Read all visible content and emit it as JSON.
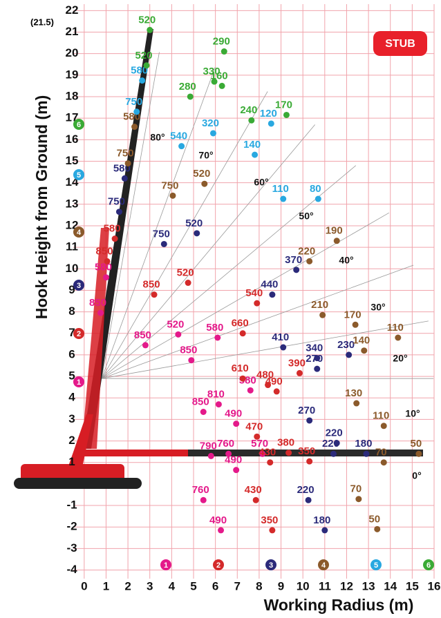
{
  "chart_data": {
    "type": "scatter",
    "boom_note": "(21.5)",
    "badge": "STUB",
    "x_label": "Working Radius (m)",
    "y_label": "Hook Height from Ground (m)",
    "xlim": [
      -0.5,
      16
    ],
    "ylim": [
      -4.4,
      22.3
    ],
    "xticks": [
      0,
      1,
      2,
      3,
      4,
      5,
      6,
      7,
      8,
      9,
      10,
      11,
      12,
      13,
      14,
      15,
      16
    ],
    "yticks": [
      -4,
      -3,
      -2,
      -1,
      1,
      2,
      3,
      4,
      5,
      6,
      7,
      8,
      9,
      10,
      11,
      12,
      13,
      14,
      15,
      16,
      17,
      18,
      19,
      20,
      21,
      22
    ],
    "grid": true,
    "angle_labels": [
      "80°",
      "70°",
      "60°",
      "50°",
      "40°",
      "30°",
      "20°",
      "10°",
      "0°"
    ],
    "series": [
      {
        "name": "1",
        "color": "#e4198a",
        "x": [
          1.0,
          0.75,
          2.8,
          4.3,
          6.1,
          4.9,
          6.15,
          5.45,
          7.6,
          6.95,
          6.6,
          8.15,
          5.8,
          6.95,
          5.45,
          6.25
        ],
        "values": [
          9.6,
          7.95,
          6.45,
          6.95,
          6.8,
          5.75,
          3.7,
          3.35,
          4.35,
          2.8,
          1.4,
          1.4,
          1.3,
          0.65,
          -0.75,
          -2.15
        ],
        "loads": [
          580,
          850,
          850,
          520,
          580,
          850,
          810,
          850,
          580,
          490,
          760,
          570,
          790,
          490,
          760,
          490
        ]
      },
      {
        "name": "2",
        "color": "#d42a2a",
        "x": [
          1.4,
          1.05,
          3.2,
          4.75,
          7.9,
          7.25,
          7.25,
          8.4,
          9.85,
          8.8,
          7.9,
          9.35,
          10.3,
          8.5,
          7.85,
          8.6
        ],
        "values": [
          11.4,
          10.35,
          8.8,
          9.35,
          8.4,
          7.0,
          4.9,
          4.6,
          5.15,
          4.3,
          2.2,
          1.45,
          1.05,
          1.0,
          -0.75,
          -2.15
        ],
        "loads": [
          580,
          850,
          850,
          520,
          540,
          660,
          610,
          480,
          390,
          490,
          470,
          380,
          350,
          430,
          430,
          350
        ]
      },
      {
        "name": "3",
        "color": "#2b2a7a",
        "x": [
          1.85,
          1.6,
          3.65,
          5.15,
          9.7,
          8.6,
          9.1,
          10.65,
          12.1,
          10.65,
          10.3,
          11.55,
          12.9,
          11.4,
          10.25,
          11.0
        ],
        "values": [
          14.2,
          12.65,
          11.15,
          11.65,
          9.95,
          8.8,
          6.35,
          5.85,
          6.0,
          5.35,
          2.95,
          1.9,
          1.4,
          1.4,
          -0.75,
          -2.15
        ],
        "loads": [
          580,
          750,
          750,
          520,
          370,
          440,
          410,
          340,
          230,
          270,
          270,
          220,
          180,
          220,
          220,
          180
        ]
      },
      {
        "name": "4",
        "color": "#8b5a2b",
        "x": [
          2.3,
          2.0,
          4.05,
          5.5,
          11.55,
          10.3,
          10.9,
          12.4,
          12.8,
          14.35,
          12.45,
          13.7,
          13.7,
          15.3,
          12.55,
          13.4
        ],
        "values": [
          16.6,
          14.9,
          13.4,
          13.95,
          11.3,
          10.35,
          7.85,
          7.4,
          6.2,
          6.8,
          3.75,
          2.7,
          1.0,
          1.4,
          -0.7,
          -2.1
        ],
        "loads": [
          580,
          750,
          750,
          520,
          190,
          220,
          210,
          170,
          140,
          110,
          130,
          110,
          70,
          50,
          70,
          50
        ]
      },
      {
        "name": "5",
        "color": "#29a8e0",
        "x": [
          2.65,
          2.4,
          4.45,
          5.9,
          8.55,
          7.8,
          9.1,
          10.7
        ],
        "values": [
          18.75,
          17.3,
          15.7,
          16.3,
          16.75,
          15.3,
          13.25,
          13.25
        ],
        "loads": [
          580,
          750,
          540,
          320,
          120,
          140,
          110,
          80
        ]
      },
      {
        "name": "6",
        "color": "#3aaa35",
        "x": [
          3.0,
          2.85,
          6.4,
          5.95,
          6.3,
          4.85,
          7.65,
          9.25
        ],
        "values": [
          21.1,
          19.45,
          20.1,
          18.7,
          18.5,
          18.0,
          16.9,
          17.15
        ],
        "loads": [
          520,
          520,
          290,
          330,
          160,
          280,
          240,
          170
        ]
      }
    ]
  }
}
